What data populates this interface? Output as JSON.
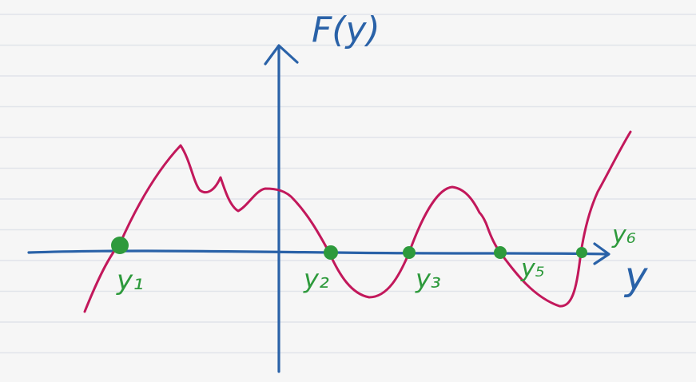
{
  "colors": {
    "background": "#f6f6f6",
    "ruled_line": "#e1e4ea",
    "axis": "#2a62a8",
    "curve": "#c2185b",
    "root_point": "#2e9a3c",
    "root_label": "#2e9a3c"
  },
  "axes": {
    "vertical_label": "F(y)",
    "horizontal_label": "y"
  },
  "roots": [
    {
      "label": "y₁"
    },
    {
      "label": "y₂"
    },
    {
      "label": "y₃"
    },
    {
      "label": "y₅"
    },
    {
      "label": "y₆"
    }
  ]
}
